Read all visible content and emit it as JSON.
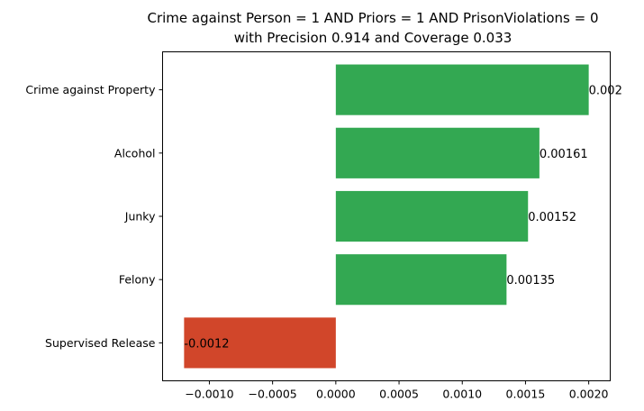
{
  "chart_data": {
    "type": "bar",
    "orientation": "horizontal",
    "title": "Crime against Person = 1 AND Priors = 1 AND PrisonViolations = 0",
    "subtitle": "with Precision 0.914 and Coverage 0.033",
    "xlabel": "",
    "ylabel": "",
    "categories": [
      "Crime against Property",
      "Alcohol",
      "Junky",
      "Felony",
      "Supervised Release"
    ],
    "values": [
      0.002,
      0.00161,
      0.00152,
      0.00135,
      -0.0012
    ],
    "value_labels": [
      "0.002",
      "0.00161",
      "0.00152",
      "0.00135",
      "-0.0012"
    ],
    "xlim": [
      -0.00137,
      0.00217
    ],
    "xticks": [
      -0.001,
      -0.0005,
      0,
      0.0005,
      0.001,
      0.0015,
      0.002
    ],
    "xtick_labels": [
      "−0.0010",
      "−0.0005",
      "0.0000",
      "0.0005",
      "0.0010",
      "0.0015",
      "0.0020"
    ],
    "grid": false,
    "colors": {
      "positive": "#33a852",
      "negative": "#d1462a"
    }
  }
}
